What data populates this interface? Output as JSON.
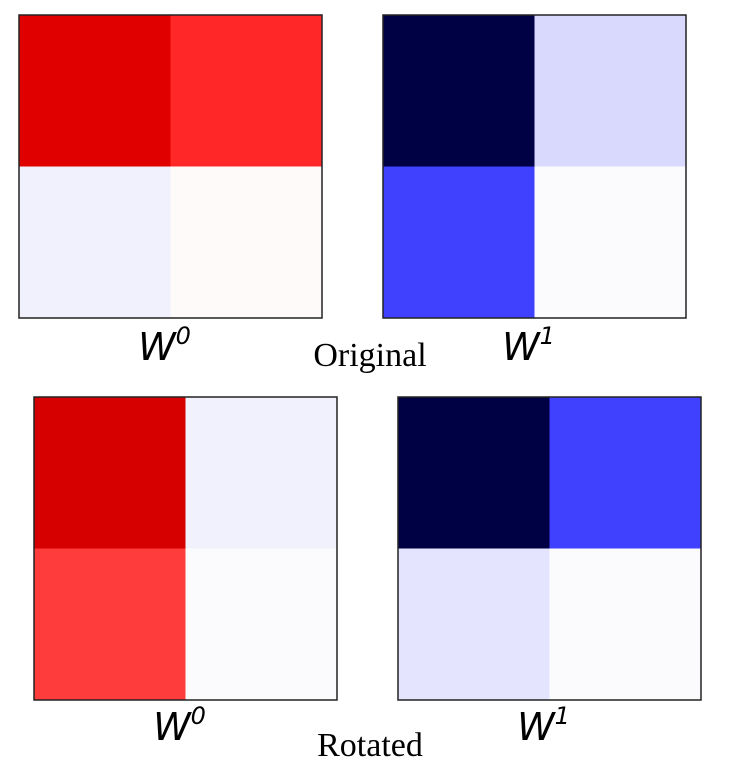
{
  "chart_data": [
    {
      "type": "heatmap",
      "group": "Original",
      "panels": [
        {
          "label_base": "W",
          "label_sup": "0",
          "cells": [
            [
              "#e10000",
              "#ff2727"
            ],
            [
              "#f1f1fe",
              "#fffafa"
            ]
          ]
        },
        {
          "label_base": "W",
          "label_sup": "1",
          "cells": [
            [
              "#000045",
              "#d9d9fe"
            ],
            [
              "#4040ff",
              "#fbfbfe"
            ]
          ]
        }
      ]
    },
    {
      "type": "heatmap",
      "group": "Rotated",
      "panels": [
        {
          "label_base": "W",
          "label_sup": "0",
          "cells": [
            [
              "#d70000",
              "#f1f1fe"
            ],
            [
              "#ff3c3c",
              "#fbfbfe"
            ]
          ]
        },
        {
          "label_base": "W",
          "label_sup": "1",
          "cells": [
            [
              "#000045",
              "#4040ff"
            ],
            [
              "#e4e4fe",
              "#fbfbfe"
            ]
          ]
        }
      ]
    }
  ]
}
